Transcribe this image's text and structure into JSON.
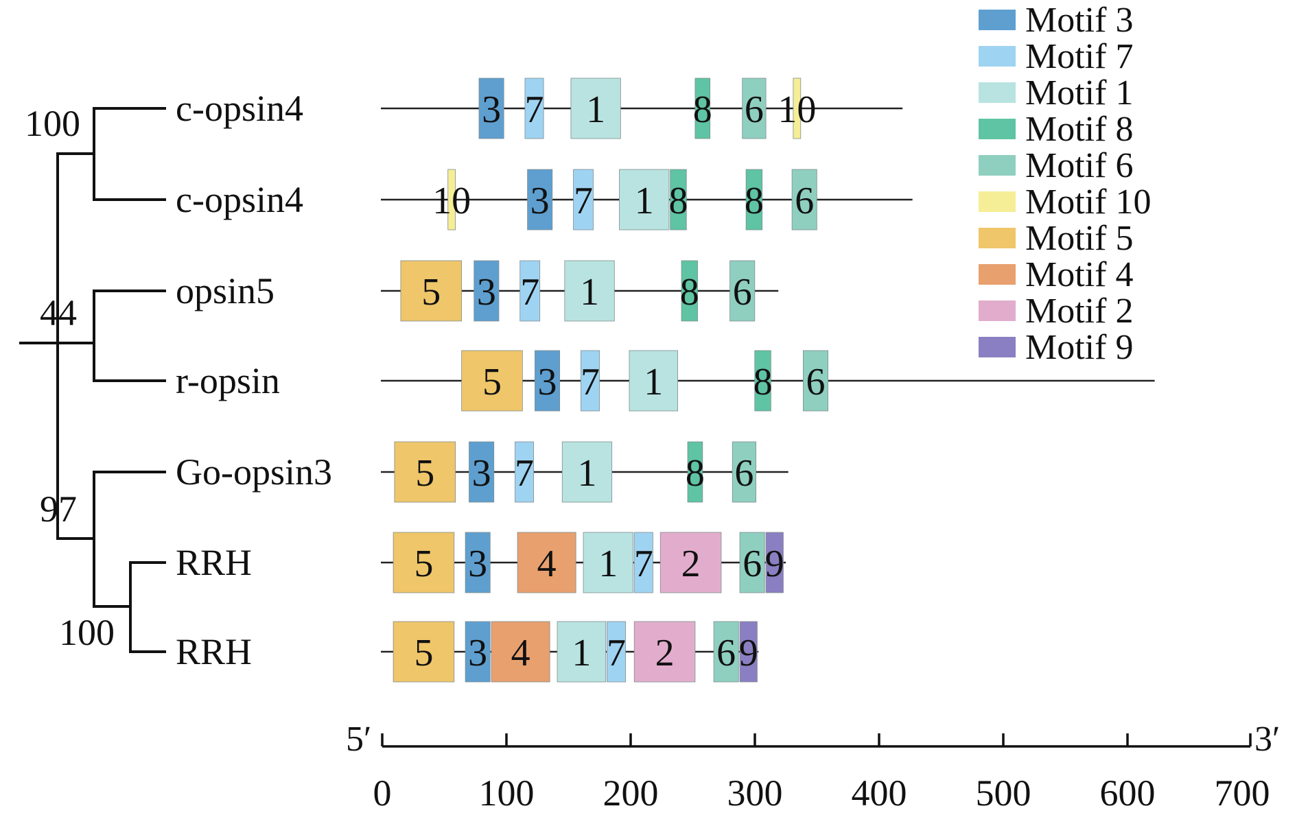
{
  "figure": {
    "sequences": [
      {
        "label": "c-opsin4",
        "length": 420,
        "motifs": [
          {
            "id": "3",
            "start": 79,
            "end": 99
          },
          {
            "id": "7",
            "start": 116,
            "end": 131
          },
          {
            "id": "1",
            "start": 153,
            "end": 193
          },
          {
            "id": "8",
            "start": 253,
            "end": 265
          },
          {
            "id": "6",
            "start": 291,
            "end": 310
          },
          {
            "id": "10",
            "start": 332,
            "end": 338
          }
        ]
      },
      {
        "label": "c-opsin4",
        "length": 428,
        "motifs": [
          {
            "id": "10",
            "start": 54,
            "end": 60
          },
          {
            "id": "3",
            "start": 118,
            "end": 138
          },
          {
            "id": "7",
            "start": 155,
            "end": 171
          },
          {
            "id": "1",
            "start": 192,
            "end": 232
          },
          {
            "id": "8",
            "start": 233,
            "end": 246
          },
          {
            "id": "8",
            "start": 294,
            "end": 307
          },
          {
            "id": "6",
            "start": 331,
            "end": 351
          }
        ]
      },
      {
        "label": "opsin5",
        "length": 320,
        "motifs": [
          {
            "id": "5",
            "start": 16,
            "end": 65
          },
          {
            "id": "3",
            "start": 75,
            "end": 95
          },
          {
            "id": "7",
            "start": 112,
            "end": 128
          },
          {
            "id": "1",
            "start": 148,
            "end": 188
          },
          {
            "id": "8",
            "start": 242,
            "end": 255
          },
          {
            "id": "6",
            "start": 281,
            "end": 301
          }
        ]
      },
      {
        "label": "r-opsin",
        "length": 623,
        "motifs": [
          {
            "id": "5",
            "start": 65,
            "end": 114
          },
          {
            "id": "3",
            "start": 124,
            "end": 144
          },
          {
            "id": "7",
            "start": 161,
            "end": 176
          },
          {
            "id": "1",
            "start": 200,
            "end": 239
          },
          {
            "id": "8",
            "start": 301,
            "end": 314
          },
          {
            "id": "6",
            "start": 340,
            "end": 360
          }
        ]
      },
      {
        "label": "Go-opsin3",
        "length": 328,
        "motifs": [
          {
            "id": "5",
            "start": 11,
            "end": 60
          },
          {
            "id": "3",
            "start": 71,
            "end": 91
          },
          {
            "id": "7",
            "start": 108,
            "end": 123
          },
          {
            "id": "1",
            "start": 146,
            "end": 186
          },
          {
            "id": "8",
            "start": 247,
            "end": 259
          },
          {
            "id": "6",
            "start": 283,
            "end": 302
          }
        ]
      },
      {
        "label": "RRH",
        "length": 326,
        "motifs": [
          {
            "id": "5",
            "start": 10,
            "end": 59
          },
          {
            "id": "3",
            "start": 68,
            "end": 88
          },
          {
            "id": "4",
            "start": 110,
            "end": 157
          },
          {
            "id": "1",
            "start": 163,
            "end": 203
          },
          {
            "id": "7",
            "start": 204,
            "end": 219
          },
          {
            "id": "2",
            "start": 225,
            "end": 274
          },
          {
            "id": "6",
            "start": 289,
            "end": 309
          },
          {
            "id": "9",
            "start": 310,
            "end": 324
          }
        ]
      },
      {
        "label": "RRH",
        "length": 304,
        "motifs": [
          {
            "id": "5",
            "start": 10,
            "end": 59
          },
          {
            "id": "3",
            "start": 68,
            "end": 88
          },
          {
            "id": "4",
            "start": 89,
            "end": 136
          },
          {
            "id": "1",
            "start": 142,
            "end": 181
          },
          {
            "id": "7",
            "start": 182,
            "end": 197
          },
          {
            "id": "2",
            "start": 204,
            "end": 253
          },
          {
            "id": "6",
            "start": 268,
            "end": 288
          },
          {
            "id": "9",
            "start": 289,
            "end": 303
          }
        ]
      }
    ],
    "bootstrap": [
      "100",
      "44",
      "97",
      "100"
    ],
    "legend": [
      {
        "label": "Motif 3",
        "motif": "3"
      },
      {
        "label": "Motif 7",
        "motif": "7"
      },
      {
        "label": "Motif 1",
        "motif": "1"
      },
      {
        "label": "Motif 8",
        "motif": "8"
      },
      {
        "label": "Motif 6",
        "motif": "6"
      },
      {
        "label": "Motif 10",
        "motif": "10"
      },
      {
        "label": "Motif 5",
        "motif": "5"
      },
      {
        "label": "Motif 4",
        "motif": "4"
      },
      {
        "label": "Motif 2",
        "motif": "2"
      },
      {
        "label": "Motif 9",
        "motif": "9"
      }
    ],
    "motif_colors": {
      "1": "#b8e3e1",
      "2": "#e2adcc",
      "3": "#5e9fd0",
      "4": "#e8a06e",
      "5": "#efc66a",
      "6": "#8fcfc0",
      "7": "#9fd3f2",
      "8": "#5fc4a3",
      "9": "#8a7fc2",
      "10": "#f5ee96"
    },
    "axis": {
      "start_label": "5′",
      "end_label": "3′",
      "range": [
        0,
        700
      ],
      "ticks": [
        "0",
        "100",
        "200",
        "300",
        "400",
        "500",
        "600",
        "700"
      ]
    }
  }
}
